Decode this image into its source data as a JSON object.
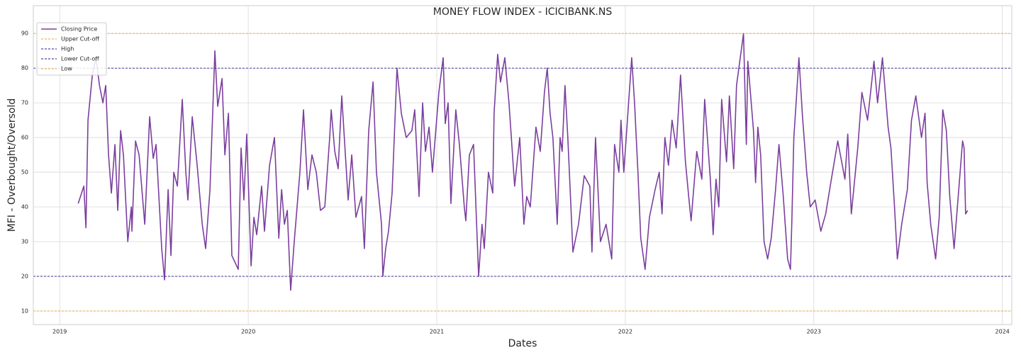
{
  "chart_data": {
    "type": "line",
    "title": "MONEY FLOW INDEX - ICICIBANK.NS",
    "x_label": "Dates",
    "y_label": "MFI - Overbought/Oversold",
    "xlim": [
      2018.86,
      2024.05
    ],
    "xticks": [
      2019,
      2020,
      2021,
      2022,
      2023,
      2024
    ],
    "ylim": [
      6.1,
      98
    ],
    "yticks": [
      10,
      20,
      30,
      40,
      50,
      60,
      70,
      80,
      90
    ],
    "grid": true,
    "legend": "upper left",
    "series": [
      {
        "name": "Closing Price",
        "color": "#7b3f9e",
        "x": [
          2019.098,
          2019.128,
          2019.139,
          2019.15,
          2019.173,
          2019.192,
          2019.211,
          2019.229,
          2019.244,
          2019.259,
          2019.274,
          2019.293,
          2019.308,
          2019.323,
          2019.338,
          2019.361,
          2019.38,
          2019.383,
          2019.402,
          2019.421,
          2019.451,
          2019.477,
          2019.496,
          2019.511,
          2019.541,
          2019.556,
          2019.575,
          2019.59,
          2019.605,
          2019.624,
          2019.65,
          2019.669,
          2019.68,
          2019.703,
          2019.729,
          2019.756,
          2019.774,
          2019.797,
          2019.823,
          2019.838,
          2019.861,
          2019.876,
          2019.895,
          2019.913,
          2019.947,
          2019.962,
          2019.977,
          2019.992,
          2020.015,
          2020.03,
          2020.045,
          2020.071,
          2020.086,
          2020.113,
          2020.139,
          2020.162,
          2020.177,
          2020.192,
          2020.207,
          2020.225,
          2020.244,
          2020.274,
          2020.293,
          2020.316,
          2020.338,
          2020.361,
          2020.383,
          2020.406,
          2020.432,
          2020.44,
          2020.459,
          2020.477,
          2020.496,
          2020.53,
          2020.549,
          2020.571,
          2020.601,
          2020.616,
          2020.639,
          2020.662,
          2020.68,
          2020.707,
          2020.714,
          2020.729,
          2020.744,
          2020.763,
          2020.789,
          2020.812,
          2020.838,
          2020.868,
          2020.883,
          2020.906,
          2020.925,
          2020.94,
          2020.959,
          2020.977,
          2021.011,
          2021.034,
          2021.045,
          2021.06,
          2021.075,
          2021.101,
          2021.12,
          2021.146,
          2021.154,
          2021.173,
          2021.195,
          2021.222,
          2021.24,
          2021.252,
          2021.274,
          2021.297,
          2021.304,
          2021.323,
          2021.338,
          2021.361,
          2021.383,
          2021.413,
          2021.44,
          2021.462,
          2021.477,
          2021.496,
          2021.526,
          2021.549,
          2021.571,
          2021.586,
          2021.601,
          2021.616,
          2021.639,
          2021.654,
          2021.665,
          2021.68,
          2021.695,
          2021.71,
          2021.722,
          2021.752,
          2021.782,
          2021.812,
          2021.823,
          2021.842,
          2021.868,
          2021.898,
          2021.928,
          2021.943,
          2021.966,
          2021.977,
          2021.992,
          2022.034,
          2022.049,
          2022.067,
          2022.082,
          2022.105,
          2022.128,
          2022.158,
          2022.18,
          2022.195,
          2022.21,
          2022.229,
          2022.248,
          2022.27,
          2022.293,
          2022.319,
          2022.338,
          2022.349,
          2022.379,
          2022.406,
          2022.413,
          2022.421,
          2022.451,
          2022.466,
          2022.481,
          2022.496,
          2022.511,
          2022.537,
          2022.552,
          2022.575,
          2022.59,
          2022.627,
          2022.642,
          2022.65,
          2022.68,
          2022.691,
          2022.703,
          2022.718,
          2022.736,
          2022.755,
          2022.774,
          2022.797,
          2022.815,
          2022.838,
          2022.861,
          2022.876,
          2022.883,
          2022.894,
          2022.906,
          2022.921,
          2022.94,
          2022.962,
          2022.981,
          2023.007,
          2023.037,
          2023.063,
          2023.093,
          2023.127,
          2023.165,
          2023.18,
          2023.199,
          2023.233,
          2023.255,
          2023.285,
          2023.319,
          2023.338,
          2023.364,
          2023.394,
          2023.409,
          2023.428,
          2023.443,
          2023.466,
          2023.496,
          2023.518,
          2023.541,
          2023.571,
          2023.59,
          2023.601,
          2023.62,
          2023.646,
          2023.665,
          2023.684,
          2023.703,
          2023.721,
          2023.744,
          2023.789,
          2023.797,
          2023.805,
          2023.816
        ],
        "values": [
          41,
          46,
          34,
          65,
          78,
          83,
          75,
          70,
          75,
          55,
          44,
          58,
          39,
          62,
          55,
          30,
          40,
          33,
          59,
          55,
          35,
          66,
          54,
          58,
          28,
          19,
          45,
          26,
          50,
          46,
          71,
          50,
          42,
          66,
          52,
          35,
          28,
          45,
          85,
          69,
          77,
          55,
          67,
          26,
          22,
          57,
          42,
          61,
          23,
          37,
          32,
          46,
          33,
          52,
          60,
          31,
          45,
          35,
          39,
          16,
          30,
          50,
          68,
          45,
          55,
          50,
          39,
          40,
          60,
          68,
          56,
          51,
          72,
          42,
          55,
          37,
          43,
          28,
          62,
          76,
          50,
          35,
          20,
          28,
          33,
          44,
          80,
          67,
          60,
          62,
          68,
          43,
          70,
          56,
          63,
          50,
          73,
          83,
          64,
          70,
          41,
          68,
          58,
          40,
          36,
          55,
          58,
          20,
          35,
          28,
          50,
          44,
          67,
          84,
          76,
          83,
          70,
          46,
          60,
          35,
          43,
          40,
          63,
          56,
          73,
          80,
          67,
          60,
          35,
          60,
          56,
          75,
          60,
          42,
          27,
          35,
          49,
          46,
          27,
          60,
          30,
          35,
          25,
          58,
          50,
          65,
          50,
          83,
          70,
          50,
          31,
          22,
          37,
          45,
          50,
          38,
          60,
          52,
          65,
          57,
          78,
          53,
          42,
          36,
          56,
          48,
          60,
          71,
          48,
          32,
          48,
          40,
          71,
          53,
          72,
          51,
          75,
          90,
          58,
          82,
          62,
          47,
          63,
          55,
          30,
          25,
          31,
          45,
          58,
          43,
          25,
          22,
          35,
          60,
          70,
          83,
          66,
          50,
          40,
          42,
          33,
          38,
          48,
          59,
          48,
          61,
          38,
          57,
          73,
          65,
          82,
          70,
          83,
          63,
          57,
          40,
          25,
          35,
          45,
          65,
          72,
          60,
          67,
          47,
          35,
          25,
          37,
          68,
          62,
          43,
          28,
          59,
          57,
          38,
          39
        ]
      },
      {
        "name": "Upper Cut-off",
        "color": "#f0a030",
        "value": 90
      },
      {
        "name": "High",
        "color": "#2a1a8c",
        "value": 80
      },
      {
        "name": "Lower Cut-off",
        "color": "#2a1a8c",
        "value": 20
      },
      {
        "name": "Low",
        "color": "#f0a030",
        "value": 10
      }
    ]
  }
}
